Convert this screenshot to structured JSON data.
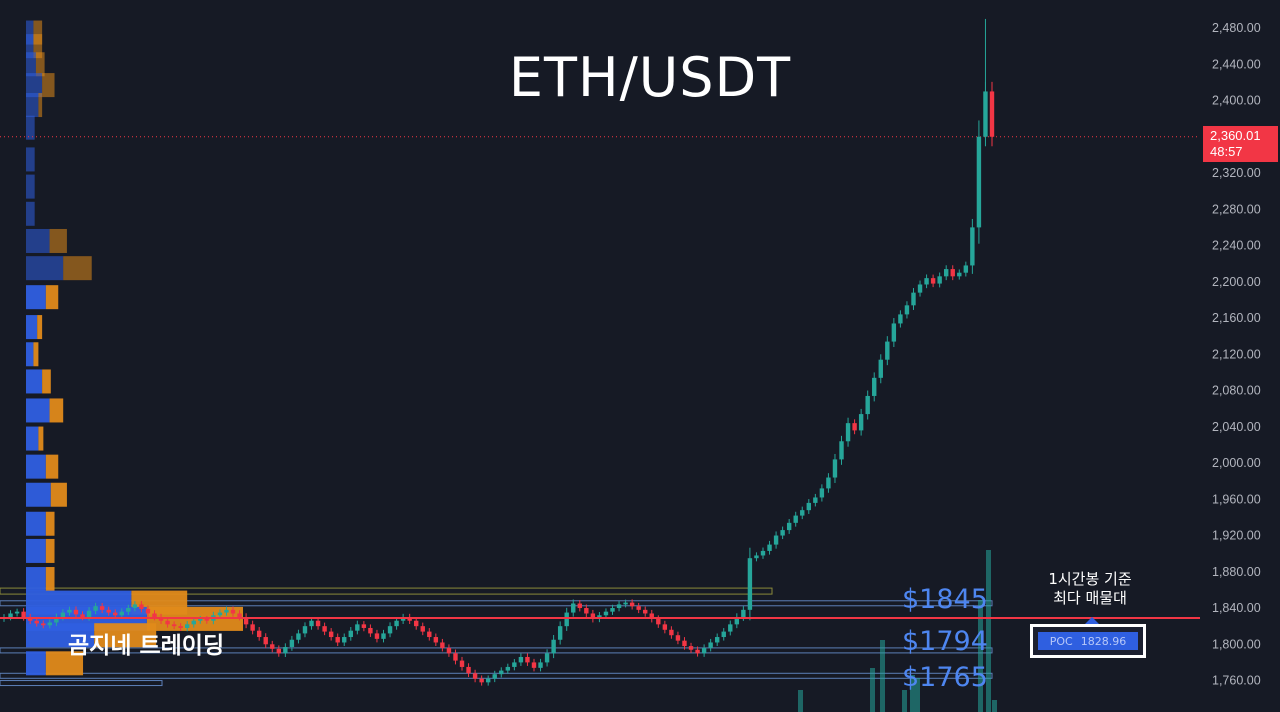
{
  "header": {
    "title": "ETH/USDT"
  },
  "watermark": "곰지네 트레이딩",
  "levels": [
    "$1845",
    "$1794",
    "$1765"
  ],
  "annotation": {
    "line1": "1시간봉 기준",
    "line2": "최다 매물대"
  },
  "poc": {
    "label": "POC",
    "value": "1828.96"
  },
  "last_price": {
    "price": "2,360.01",
    "countdown": "48:57"
  },
  "colors": {
    "background": "#161a25",
    "up": "#26a69a",
    "down": "#f23645",
    "profile_buy": "#2f5fe0",
    "profile_sell": "#e08a1a",
    "poc_line": "#f23645",
    "level_text": "#4e86f0"
  },
  "chart_data": {
    "type": "candlestick",
    "title": "ETH/USDT",
    "y_axis_ticks": [
      "2,480.00",
      "2,440.00",
      "2,400.00",
      "2,360.00",
      "2,320.00",
      "2,280.00",
      "2,240.00",
      "2,200.00",
      "2,160.00",
      "2,120.00",
      "2,080.00",
      "2,040.00",
      "2,000.00",
      "1,960.00",
      "1,920.00",
      "1,880.00",
      "1,840.00",
      "1,800.00",
      "1,760.00"
    ],
    "ylim": [
      1740,
      2500
    ],
    "grid": false,
    "current_price": 2360.01,
    "poc_price": 1828.96,
    "series": [
      {
        "close": [
          1830,
          1834,
          1836,
          1830,
          1826,
          1823,
          1821,
          1824,
          1830,
          1835,
          1838,
          1833,
          1830,
          1837,
          1842,
          1838,
          1835,
          1832,
          1836,
          1840,
          1844,
          1839,
          1834,
          1830,
          1826,
          1822,
          1820,
          1818,
          1822,
          1826,
          1828,
          1826,
          1832,
          1835,
          1838,
          1834,
          1830,
          1822,
          1815,
          1808,
          1800,
          1795,
          1790,
          1797,
          1805,
          1812,
          1820,
          1826,
          1820,
          1814,
          1808,
          1802,
          1808,
          1815,
          1822,
          1818,
          1812,
          1806,
          1812,
          1820,
          1826,
          1830,
          1826,
          1820,
          1814,
          1808,
          1802,
          1796,
          1790,
          1782,
          1775,
          1768,
          1762,
          1758,
          1762,
          1767,
          1771,
          1775,
          1780,
          1786,
          1780,
          1774,
          1780,
          1790,
          1805,
          1820,
          1835,
          1845,
          1840,
          1834,
          1828,
          1832,
          1836,
          1840,
          1844,
          1846,
          1842,
          1838,
          1834,
          1828,
          1822,
          1816,
          1810,
          1804,
          1798,
          1794,
          1790,
          1796,
          1802,
          1808,
          1814,
          1822,
          1830,
          1838,
          1895,
          1898,
          1903,
          1910,
          1920,
          1926,
          1934,
          1942,
          1948,
          1956,
          1962,
          1972,
          1984,
          2004,
          2024,
          2044,
          2036,
          2054,
          2074,
          2094,
          2114,
          2134,
          2154,
          2164,
          2174,
          2188,
          2197,
          2204,
          2198,
          2206,
          2214,
          2206,
          2210,
          2218,
          2260,
          2360,
          2410,
          2360
        ]
      }
    ],
    "level_labels": [
      "$1845",
      "$1794",
      "$1765"
    ],
    "volume_profile": [
      {
        "price": 2475,
        "buy": 12,
        "sell": 14
      },
      {
        "price": 2460,
        "buy": 12,
        "sell": 14
      },
      {
        "price": 2440,
        "buy": 16,
        "sell": 14
      },
      {
        "price": 2417,
        "buy": 26,
        "sell": 20
      },
      {
        "price": 2395,
        "buy": 20,
        "sell": 6
      },
      {
        "price": 2370,
        "buy": 14,
        "sell": 0
      },
      {
        "price": 2335,
        "buy": 14,
        "sell": 0
      },
      {
        "price": 2305,
        "buy": 14,
        "sell": 0
      },
      {
        "price": 2275,
        "buy": 14,
        "sell": 0
      },
      {
        "price": 2245,
        "buy": 38,
        "sell": 28
      },
      {
        "price": 2215,
        "buy": 60,
        "sell": 46
      },
      {
        "price": 2183,
        "buy": 32,
        "sell": 20
      },
      {
        "price": 2150,
        "buy": 18,
        "sell": 8
      },
      {
        "price": 2120,
        "buy": 12,
        "sell": 8
      },
      {
        "price": 2090,
        "buy": 26,
        "sell": 14
      },
      {
        "price": 2058,
        "buy": 38,
        "sell": 22
      },
      {
        "price": 2027,
        "buy": 20,
        "sell": 8
      },
      {
        "price": 1996,
        "buy": 32,
        "sell": 20
      },
      {
        "price": 1965,
        "buy": 40,
        "sell": 26
      },
      {
        "price": 1933,
        "buy": 32,
        "sell": 14
      },
      {
        "price": 1903,
        "buy": 32,
        "sell": 14
      },
      {
        "price": 1872,
        "buy": 32,
        "sell": 14
      },
      {
        "price": 1846,
        "buy": 170,
        "sell": 90
      },
      {
        "price": 1828,
        "buy": 195,
        "sell": 155
      },
      {
        "price": 1810,
        "buy": 110,
        "sell": 100
      },
      {
        "price": 1779,
        "buy": 32,
        "sell": 60
      }
    ]
  }
}
